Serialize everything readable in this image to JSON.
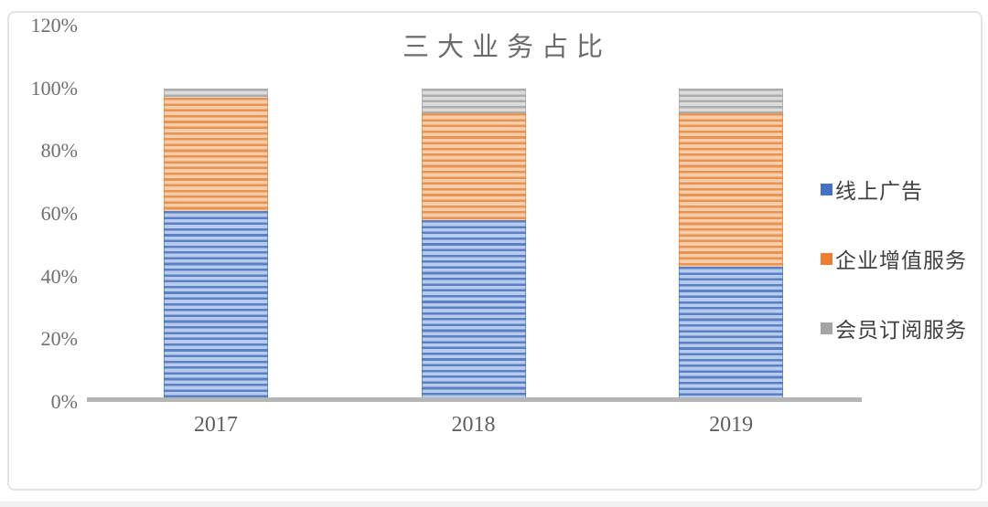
{
  "chart_data": {
    "type": "bar",
    "stacked": true,
    "title": "三大业务占比",
    "categories": [
      "2017",
      "2018",
      "2019"
    ],
    "series": [
      {
        "name": "线上广告",
        "values": [
          61,
          58,
          43
        ],
        "color": "#4472C4",
        "stripe_dark": "#5B7FC4",
        "stripe_light": "#B7CBEC"
      },
      {
        "name": "企业增值服务",
        "values": [
          36,
          34,
          49
        ],
        "color": "#ED7D31",
        "stripe_dark": "#E8934F",
        "stripe_light": "#F6CDAA"
      },
      {
        "name": "会员订阅服务",
        "values": [
          3,
          8,
          8
        ],
        "color": "#A5A5A5",
        "stripe_dark": "#ACACAC",
        "stripe_light": "#DBDBDB"
      }
    ],
    "xlabel": "",
    "ylabel": "",
    "ylim": [
      0,
      120
    ],
    "ytick_labels": [
      "120%",
      "100%",
      "80%",
      "60%",
      "40%",
      "20%",
      "0%"
    ],
    "ytick_values": [
      120,
      100,
      80,
      60,
      40,
      20,
      0
    ],
    "unit": "%",
    "grid": false,
    "legend_position": "right",
    "axis_color": "#b6b6b6"
  }
}
